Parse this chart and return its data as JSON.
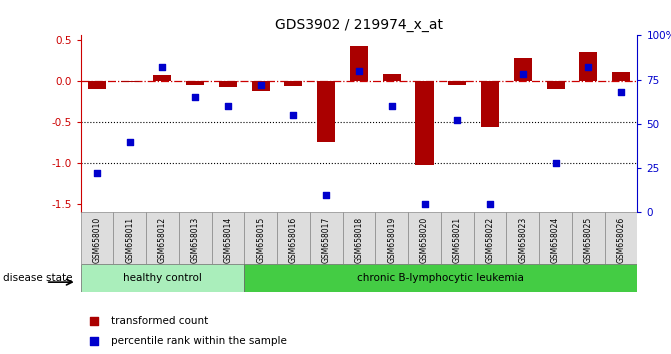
{
  "title": "GDS3902 / 219974_x_at",
  "samples": [
    "GSM658010",
    "GSM658011",
    "GSM658012",
    "GSM658013",
    "GSM658014",
    "GSM658015",
    "GSM658016",
    "GSM658017",
    "GSM658018",
    "GSM658019",
    "GSM658020",
    "GSM658021",
    "GSM658022",
    "GSM658023",
    "GSM658024",
    "GSM658025",
    "GSM658026"
  ],
  "red_values": [
    -0.1,
    -0.02,
    0.07,
    -0.05,
    -0.08,
    -0.12,
    -0.06,
    -0.75,
    0.42,
    0.08,
    -1.02,
    -0.05,
    -0.56,
    0.27,
    -0.1,
    0.35,
    0.1
  ],
  "blue_values": [
    22,
    40,
    82,
    65,
    60,
    72,
    55,
    10,
    80,
    60,
    5,
    52,
    5,
    78,
    28,
    82,
    68
  ],
  "groups": [
    {
      "label": "healthy control",
      "start": 0,
      "end": 5,
      "color": "#b2f0b2"
    },
    {
      "label": "chronic B-lymphocytic leukemia",
      "start": 5,
      "end": 17,
      "color": "#44cc55"
    }
  ],
  "ylim_left": [
    -1.6,
    0.55
  ],
  "ylim_right": [
    0,
    100
  ],
  "yticks_left": [
    0.5,
    0.0,
    -0.5,
    -1.0,
    -1.5
  ],
  "yticks_right": [
    0,
    25,
    50,
    75,
    100
  ],
  "dotted_lines": [
    -0.5,
    -1.0
  ],
  "bar_color": "#aa0000",
  "dot_color": "#0000cc",
  "legend_items": [
    "transformed count",
    "percentile rank within the sample"
  ],
  "disease_state_label": "disease state",
  "healthy_color": "#aaeebb",
  "leukemia_color": "#44cc44",
  "sample_box_color": "#dddddd",
  "n_healthy": 5,
  "n_samples": 17
}
